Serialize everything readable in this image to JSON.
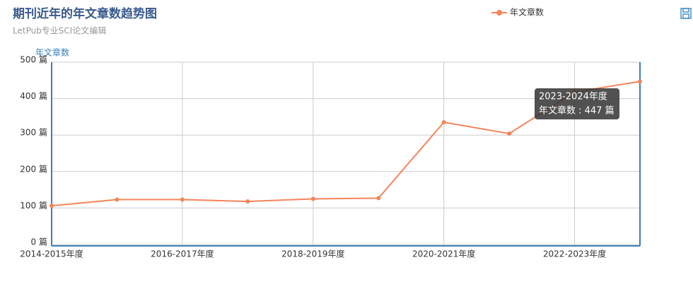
{
  "chart_data": {
    "type": "line",
    "title": "期刊近年的年文章数趋势图",
    "subtitle": "LetPub专业SCI论文编辑",
    "y_axis_label": "年文章数",
    "categories": [
      "2014-2015年度",
      null,
      "2016-2017年度",
      null,
      "2018-2019年度",
      null,
      "2020-2021年度",
      null,
      "2022-2023年度",
      null
    ],
    "series": [
      {
        "name": "年文章数",
        "color": "#f4845a",
        "values": [
          106,
          123,
          123,
          118,
          125,
          127,
          335,
          304,
          418,
          447
        ]
      }
    ],
    "ylim": [
      0,
      500
    ],
    "yticks": [
      {
        "value": 0,
        "label": "0 篇"
      },
      {
        "value": 100,
        "label": "100 篇"
      },
      {
        "value": 200,
        "label": "200 篇"
      },
      {
        "value": 300,
        "label": "300 篇"
      },
      {
        "value": 400,
        "label": "400 篇"
      },
      {
        "value": 500,
        "label": "500 篇"
      }
    ],
    "grid": true,
    "legend": "top",
    "tooltip": {
      "title": "2023-2024年度",
      "text": "年文章数 : 447 篇"
    }
  }
}
